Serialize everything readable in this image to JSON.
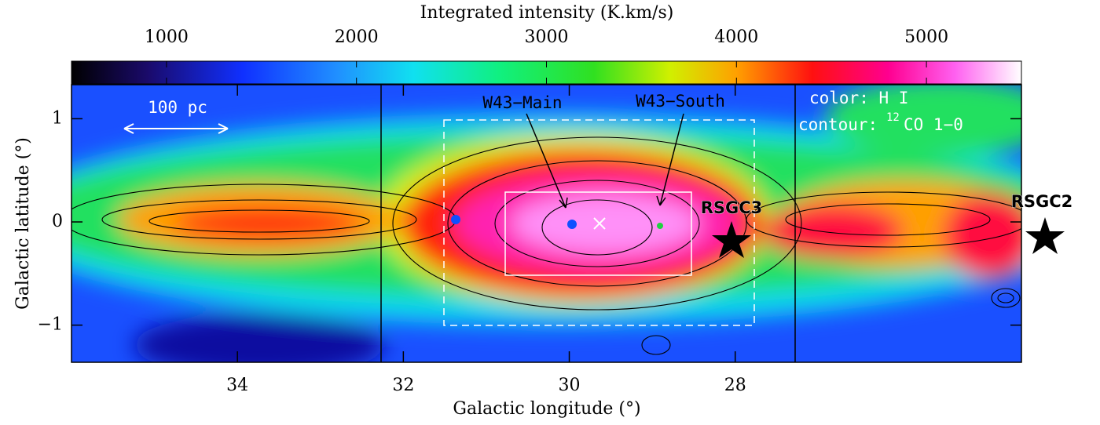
{
  "chart_data": {
    "type": "heatmap",
    "colorbar_label": "Integrated intensity (K.km/s)",
    "clim": [
      500,
      5500
    ],
    "cticks": [
      1000,
      2000,
      3000,
      4000,
      5000
    ],
    "xlabel": "Galactic longitude (°)",
    "ylabel": "Galactic latitude (°)",
    "xlim": [
      36,
      24.55
    ],
    "xticks": [
      34,
      32,
      30,
      28
    ],
    "ylim": [
      -1.36,
      1.33
    ],
    "yticks": [
      1,
      0,
      {
        "value": -1,
        "label": "−1"
      }
    ],
    "annotations": {
      "scale": "100 pc",
      "w43_main": "W43−Main",
      "w43_south": "W43−South",
      "color_label": "color: H I",
      "contour_label": "contour:",
      "contour_isotope": "12",
      "contour_molecule": "CO 1−0",
      "rsgc3": "RSGC3",
      "rsgc2": "RSGC2"
    }
  }
}
